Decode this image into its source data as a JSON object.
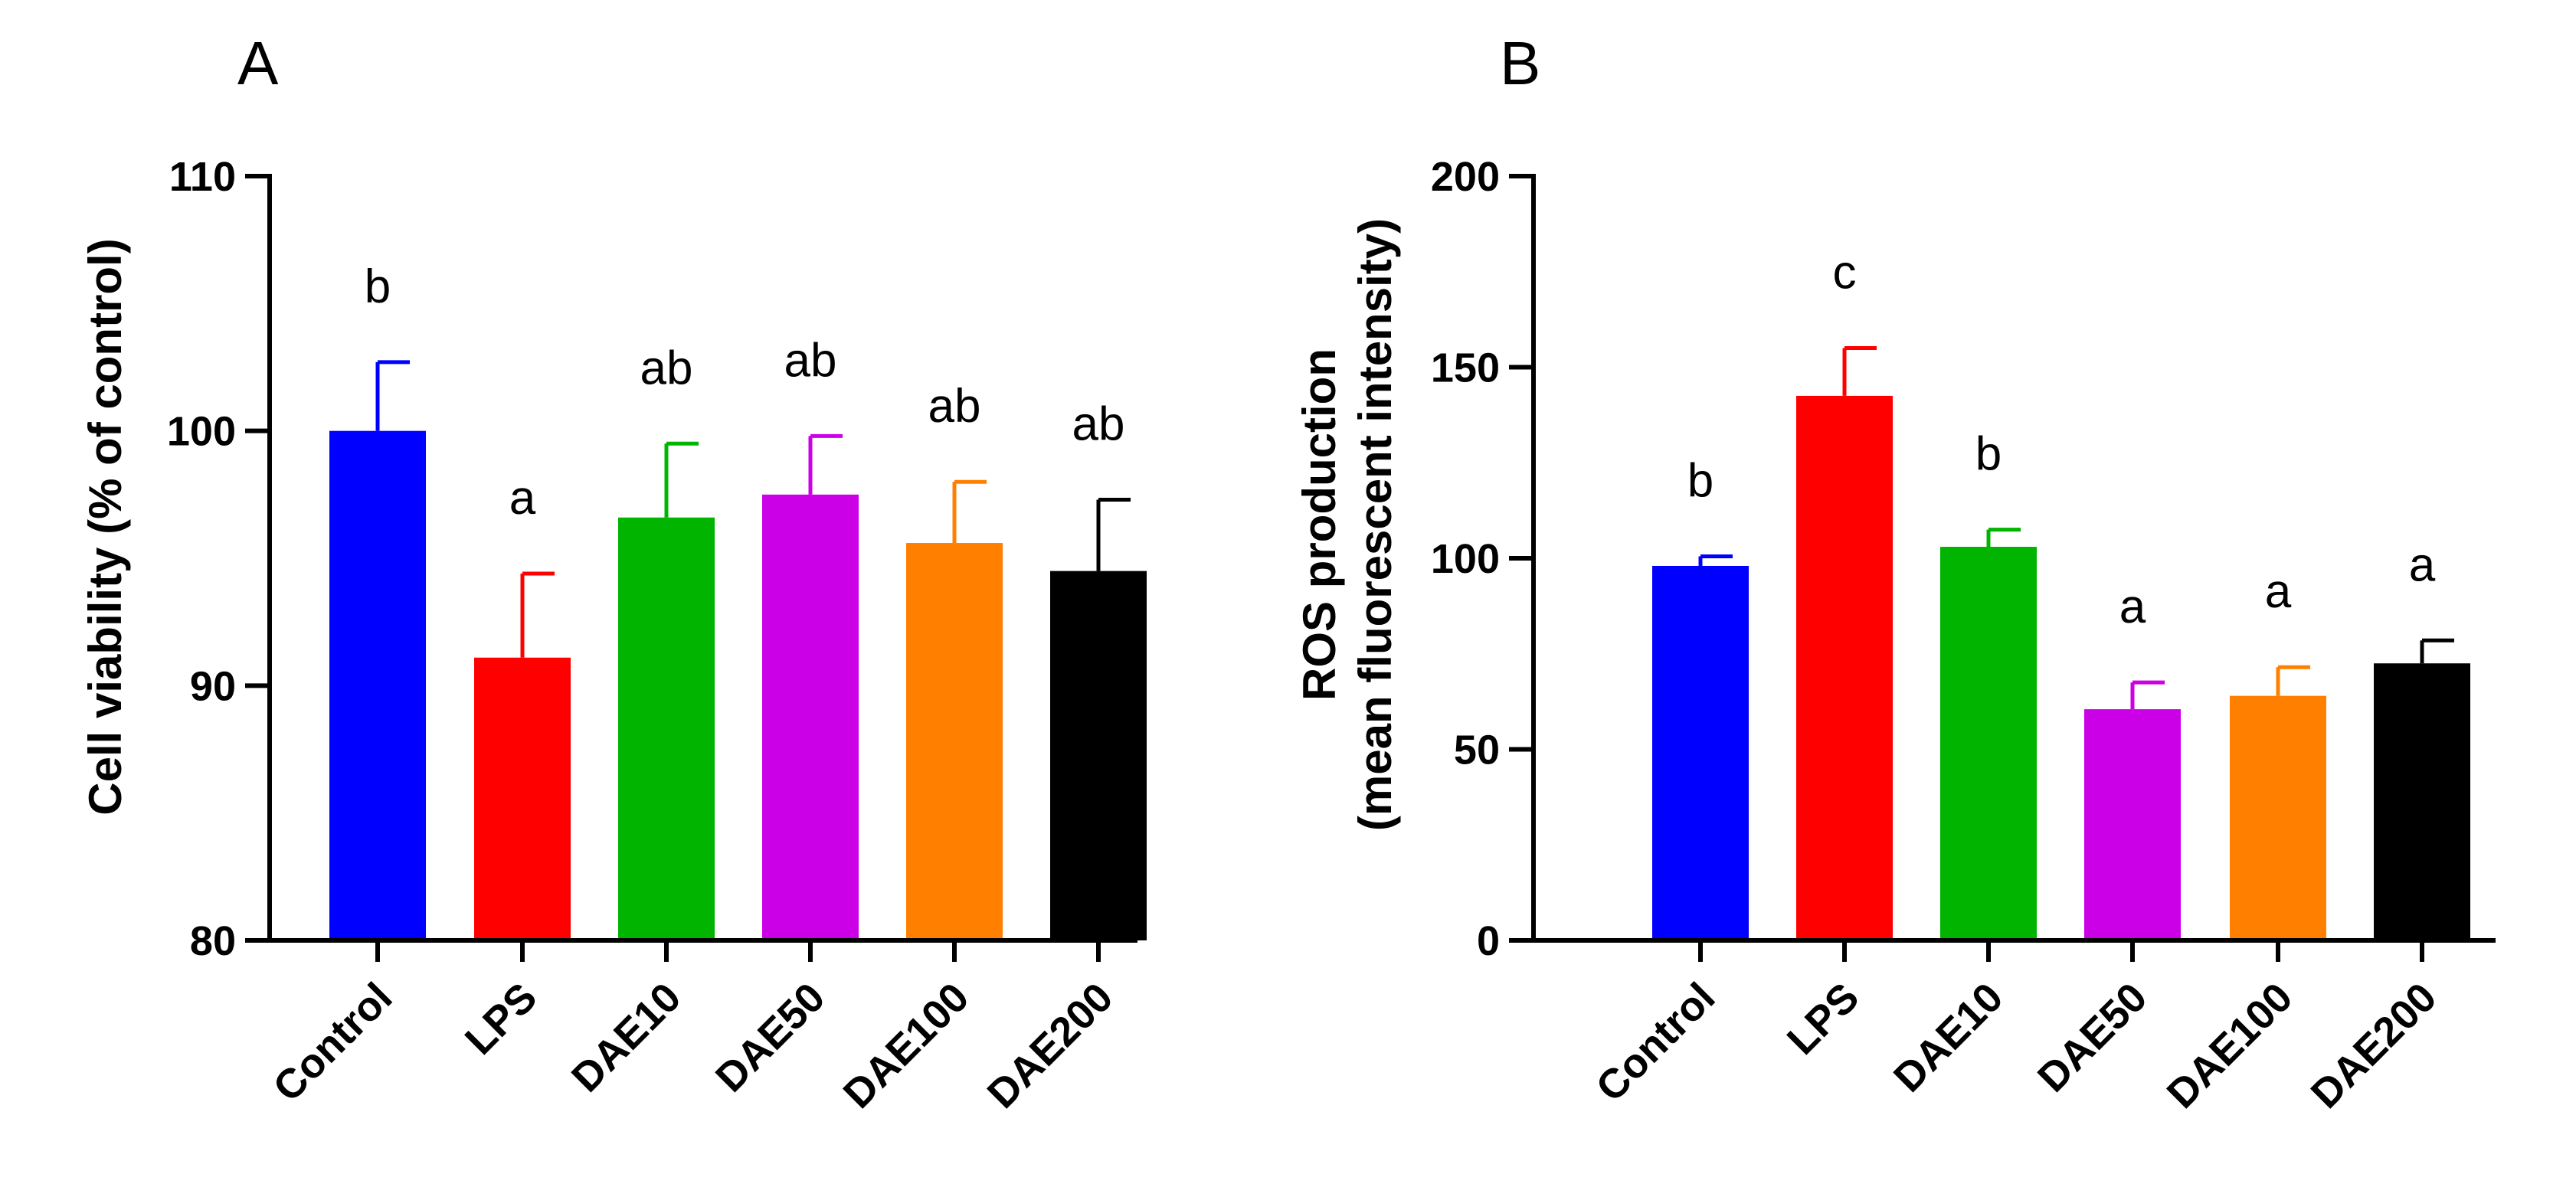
{
  "colors": {
    "Control": "#0000FF",
    "LPS": "#FF0000",
    "DAE10": "#00B400",
    "DAE50": "#CC00E6",
    "DAE100": "#FF8000",
    "DAE200": "#000000",
    "axis": "#000000"
  },
  "chart_data": [
    {
      "type": "bar",
      "panel": "A",
      "categories": [
        "Control",
        "LPS",
        "DAE10",
        "DAE50",
        "DAE100",
        "DAE200"
      ],
      "values": [
        100,
        91.1,
        96.6,
        97.5,
        95.6,
        94.5
      ],
      "errors": [
        2.7,
        3.3,
        2.9,
        2.3,
        2.4,
        2.8
      ],
      "significance": [
        "b",
        "a",
        "ab",
        "ab",
        "ab",
        "ab"
      ],
      "ylabel": "Cell viability (% of control)",
      "xlabel": "",
      "ylim": [
        80,
        110
      ],
      "yticks": [
        80,
        90,
        100,
        110
      ],
      "grid": false
    },
    {
      "type": "bar",
      "panel": "B",
      "categories": [
        "Control",
        "LPS",
        "DAE10",
        "DAE50",
        "DAE100",
        "DAE200"
      ],
      "values": [
        98,
        142.5,
        103,
        60.5,
        64,
        72.5
      ],
      "errors": [
        2.5,
        12.5,
        4.5,
        7,
        7.5,
        6
      ],
      "significance": [
        "b",
        "c",
        "b",
        "a",
        "a",
        "a"
      ],
      "ylabel_line1": "ROS production",
      "ylabel_line2": "(mean fluorescent intensity)",
      "xlabel": "",
      "ylim": [
        0,
        200
      ],
      "yticks": [
        0,
        50,
        100,
        150,
        200
      ],
      "grid": false
    }
  ]
}
